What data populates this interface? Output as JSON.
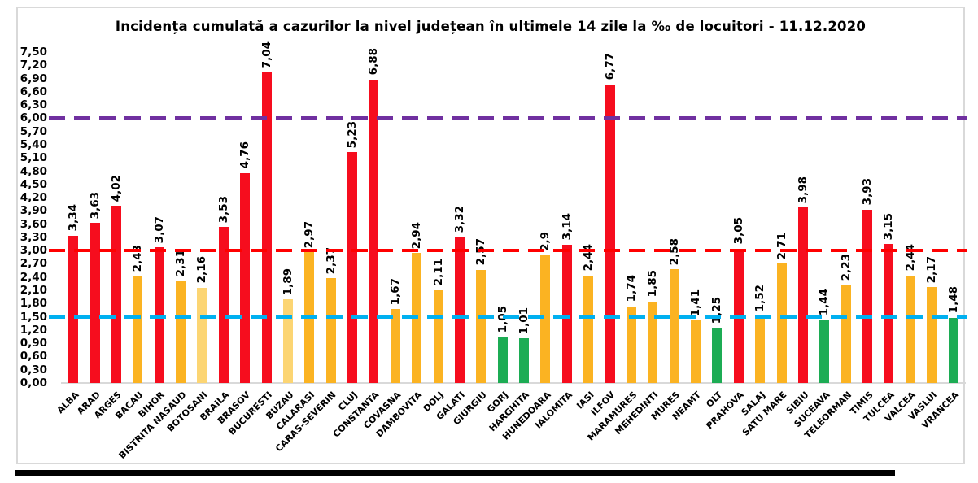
{
  "chart_data": {
    "type": "bar",
    "title": "Incidența cumulată a cazurilor la nivel județean în ultimele 14 zile la ‰ de locuitori - 11.12.2020",
    "xlabel": "",
    "ylabel": "",
    "ylim": [
      0,
      7.5
    ],
    "ytick_step": 0.3,
    "yticks": [
      "7,50",
      "7,20",
      "6,90",
      "6,60",
      "6,30",
      "6,00",
      "5,70",
      "5,40",
      "5,10",
      "4,80",
      "4,50",
      "4,20",
      "3,90",
      "3,60",
      "3,30",
      "3,00",
      "2,70",
      "2,40",
      "2,10",
      "1,80",
      "1,50",
      "1,20",
      "0,90",
      "0,60",
      "0,30",
      "0,00"
    ],
    "grid": false,
    "legend": false,
    "categories": [
      "ALBA",
      "ARAD",
      "ARGES",
      "BACAU",
      "BIHOR",
      "BISTRITA NASAUD",
      "BOTOSANI",
      "BRAILA",
      "BRASOV",
      "BUCURESTI",
      "BUZAU",
      "CALARASI",
      "CARAS-SEVERIN",
      "CLUJ",
      "CONSTANTA",
      "COVASNA",
      "DAMBOVITA",
      "DOLJ",
      "GALATI",
      "GIURGIU",
      "GORJ",
      "HARGHITA",
      "HUNEDOARA",
      "IALOMITA",
      "IASI",
      "ILFOV",
      "MARAMURES",
      "MEHEDINTI",
      "MURES",
      "NEAMT",
      "OLT",
      "PRAHOVA",
      "SALAJ",
      "SATU MARE",
      "SIBIU",
      "SUCEAVA",
      "TELEORMAN",
      "TIMIS",
      "TULCEA",
      "VALCEA",
      "VASLUI",
      "VRANCEA"
    ],
    "values": [
      3.34,
      3.63,
      4.02,
      2.43,
      3.07,
      2.31,
      2.16,
      3.53,
      4.76,
      7.04,
      1.89,
      2.97,
      2.37,
      5.23,
      6.88,
      1.67,
      2.94,
      2.11,
      3.32,
      2.57,
      1.05,
      1.01,
      2.9,
      3.14,
      2.44,
      6.77,
      1.74,
      1.85,
      2.58,
      1.41,
      1.25,
      3.05,
      1.52,
      2.71,
      3.98,
      1.44,
      2.23,
      3.93,
      3.15,
      2.44,
      2.17,
      1.48
    ],
    "value_labels": [
      "3,34",
      "3,63",
      "4,02",
      "2,43",
      "3,07",
      "2,31",
      "2,16",
      "3,53",
      "4,76",
      "7,04",
      "1,89",
      "2,97",
      "2,37",
      "5,23",
      "6,88",
      "1,67",
      "2,94",
      "2,11",
      "3,32",
      "2,57",
      "1,05",
      "1,01",
      "2,9",
      "3,14",
      "2,44",
      "6,77",
      "1,74",
      "1,85",
      "2,58",
      "1,41",
      "1,25",
      "3,05",
      "1,52",
      "2,71",
      "3,98",
      "1,44",
      "2,23",
      "3,93",
      "3,15",
      "2,44",
      "2,17",
      "1,48"
    ],
    "bar_colors": [
      "red",
      "red",
      "red",
      "amber",
      "red",
      "amber",
      "light_amber",
      "red",
      "red",
      "red",
      "light_amber",
      "amber",
      "amber",
      "red",
      "red",
      "amber",
      "amber",
      "amber",
      "red",
      "amber",
      "green",
      "green",
      "amber",
      "red",
      "amber",
      "red",
      "amber",
      "amber",
      "amber",
      "amber",
      "green",
      "red",
      "amber",
      "amber",
      "red",
      "green",
      "amber",
      "red",
      "red",
      "amber",
      "amber",
      "green"
    ],
    "palette": {
      "red": "#F60D1E",
      "amber": "#FBB322",
      "light_amber": "#FCD573",
      "green": "#1CAC54",
      "axis_gray": "#D9D9D9",
      "text": "#000000"
    },
    "thresholds": [
      {
        "name": "threshold-purple-line",
        "value": 6.0,
        "color": "#7030A0"
      },
      {
        "name": "threshold-red-line",
        "value": 3.0,
        "color": "#FF0000"
      },
      {
        "name": "threshold-cyan-line",
        "value": 1.5,
        "color": "#00B0F0"
      }
    ]
  }
}
